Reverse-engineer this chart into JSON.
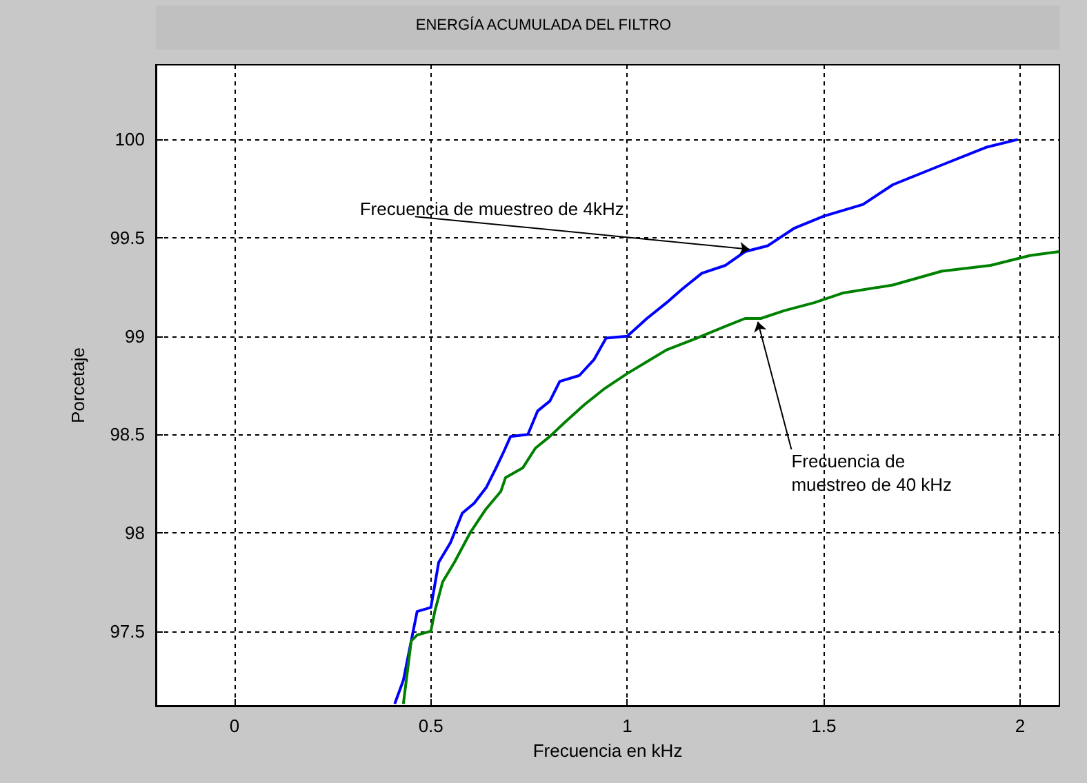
{
  "chart_data": {
    "type": "line",
    "title": "ENERGÍA ACUMULADA DEL FILTRO",
    "xlabel": "Frecuencia en kHz",
    "ylabel": "Porcetaje",
    "xlim": [
      -0.2,
      2.1
    ],
    "xticks": [
      0,
      0.5,
      1,
      1.5,
      2
    ],
    "ylim": [
      97.12,
      100.38
    ],
    "yticks": [
      97.5,
      98,
      98.5,
      99,
      99.5,
      100
    ],
    "grid": true,
    "marker": "none",
    "line_style": "solid",
    "series": [
      {
        "color": "#0000ff",
        "x": [
          0.408,
          0.43,
          0.45,
          0.465,
          0.5,
          0.52,
          0.55,
          0.58,
          0.61,
          0.641,
          0.666,
          0.685,
          0.703,
          0.747,
          0.772,
          0.803,
          0.828,
          0.878,
          0.915,
          0.946,
          1.0,
          1.05,
          1.1,
          1.14,
          1.19,
          1.25,
          1.3,
          1.358,
          1.426,
          1.5,
          1.6,
          1.676,
          1.738,
          1.8,
          1.913,
          1.994
        ],
        "values": [
          97.13,
          97.25,
          97.45,
          97.6,
          97.62,
          97.85,
          97.95,
          98.1,
          98.15,
          98.23,
          98.33,
          98.41,
          98.49,
          98.5,
          98.62,
          98.67,
          98.77,
          98.8,
          98.88,
          98.99,
          99.0,
          99.09,
          99.17,
          99.24,
          99.32,
          99.36,
          99.43,
          99.46,
          99.55,
          99.61,
          99.67,
          99.77,
          99.82,
          99.87,
          99.96,
          100.0
        ]
      },
      {
        "color": "#008000",
        "x": [
          0.43,
          0.45,
          0.465,
          0.5,
          0.51,
          0.53,
          0.56,
          0.6,
          0.64,
          0.678,
          0.69,
          0.734,
          0.766,
          0.803,
          0.84,
          0.89,
          0.94,
          1.0,
          1.05,
          1.1,
          1.177,
          1.25,
          1.3,
          1.34,
          1.4,
          1.476,
          1.55,
          1.676,
          1.8,
          1.925,
          2.025,
          2.1
        ],
        "values": [
          97.13,
          97.45,
          97.48,
          97.5,
          97.6,
          97.75,
          97.85,
          98.0,
          98.12,
          98.21,
          98.28,
          98.33,
          98.43,
          98.49,
          98.56,
          98.65,
          98.73,
          98.81,
          98.87,
          98.93,
          98.99,
          99.05,
          99.09,
          99.09,
          99.13,
          99.17,
          99.22,
          99.26,
          99.33,
          99.36,
          99.41,
          99.43
        ]
      }
    ],
    "annotations": [
      {
        "text": "Frecuencia de muestreo de 4kHz",
        "x": 1.32,
        "y": 99.44
      },
      {
        "text": "Frecuencia de muestreo de 40 kHz",
        "x": 1.33,
        "y": 99.09
      }
    ]
  }
}
